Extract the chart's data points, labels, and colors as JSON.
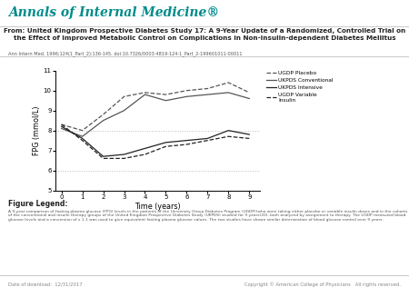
{
  "title_journal": "Annals of Internal Medicine®",
  "title_article": "From: United Kingdom Prospective Diabetes Study 17: A 9-Year Update of a Randomized, Controlled Trial on\nthe Effect of Improved Metabolic Control on Complications in Non-Insulin-dependent Diabetes Mellitus",
  "citation": "Ann Intern Med. 1996;124(1_Part_2):136-145. doi:10.7326/0003-4819-124-1_Part_2-199601011-00011",
  "xlabel": "Time (years)",
  "ylabel": "FPG (mmol/L)",
  "xlim": [
    -0.3,
    9.5
  ],
  "ylim": [
    5,
    11
  ],
  "yticks": [
    5,
    6,
    7,
    8,
    9,
    10,
    11
  ],
  "xticks": [
    0,
    1,
    2,
    3,
    4,
    5,
    6,
    7,
    8,
    9
  ],
  "hlines": [
    6.0,
    8.0
  ],
  "series": [
    {
      "label": "UGDP Placebo",
      "x": [
        0,
        1,
        2,
        3,
        4,
        5,
        6,
        7,
        8,
        9
      ],
      "y": [
        8.3,
        8.0,
        8.8,
        9.7,
        9.9,
        9.8,
        10.0,
        10.1,
        10.4,
        9.9
      ],
      "linestyle": "--",
      "color": "#555555"
    },
    {
      "label": "UKPDS Conventional",
      "x": [
        0,
        1,
        2,
        3,
        4,
        5,
        6,
        7,
        8,
        9
      ],
      "y": [
        8.1,
        7.7,
        8.5,
        9.0,
        9.8,
        9.5,
        9.7,
        9.8,
        9.9,
        9.6
      ],
      "linestyle": "-",
      "color": "#555555"
    },
    {
      "label": "UKPDS Intensive",
      "x": [
        0,
        1,
        2,
        3,
        4,
        5,
        6,
        7,
        8,
        9
      ],
      "y": [
        8.2,
        7.6,
        6.7,
        6.8,
        7.1,
        7.4,
        7.5,
        7.6,
        8.0,
        7.8
      ],
      "linestyle": "-",
      "color": "#222222"
    },
    {
      "label": "UGDP Variable\nInsulin",
      "x": [
        0,
        1,
        2,
        3,
        4,
        5,
        6,
        7,
        8,
        9
      ],
      "y": [
        8.3,
        7.5,
        6.6,
        6.6,
        6.8,
        7.2,
        7.3,
        7.5,
        7.7,
        7.6
      ],
      "linestyle": "--",
      "color": "#222222"
    }
  ],
  "figure_legend_title": "Figure Legend:",
  "figure_legend_text": "A 9-year comparison of fasting plasma glucose (FPG) levels in the patients of the University Group Diabetes Program (UGDP)(who were taking either placebo or variable insulin doses and in the cohorts of the conventional and insulin therapy groups of the United Kingdom Prospective Diabetes Study (UKPDS) studied for 9 years(20), both analyzed by assignment to therapy. The UGDP measured blood glucose levels and a conversion of x 1.1 was used to give equivalent fasting plasma glucose values. The two studies have shown similar deterioration of blood glucose control over 9 years.",
  "footer_left": "Date of download:  12/31/2017",
  "footer_right": "Copyright © American College of Physicians   All rights reserved.",
  "background_color": "#ffffff",
  "journal_color": "#008b8b",
  "plot_bg": "#ffffff",
  "sep_color": "#cccccc",
  "footer_color": "#888888",
  "text_color": "#222222",
  "citation_color": "#555555"
}
